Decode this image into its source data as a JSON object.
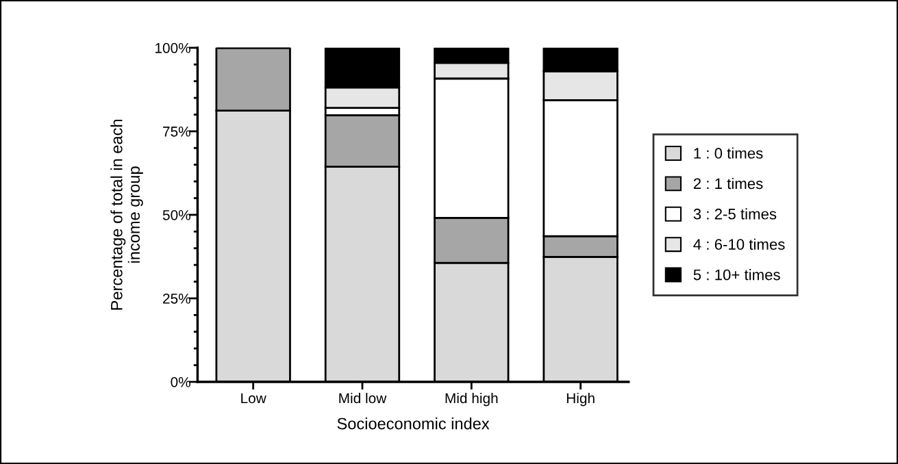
{
  "chart_data": {
    "type": "bar",
    "stacked": true,
    "xlabel": "Socioeconomic index",
    "ylabel": "Percentage of total in each\nincome group",
    "categories": [
      "Low",
      "Mid low",
      "Mid high",
      "High"
    ],
    "series": [
      {
        "name": "1 : 0 times",
        "color": "#d9d9d9",
        "values": [
          81.2,
          64.4,
          35.6,
          37.4
        ]
      },
      {
        "name": "2 : 1 times",
        "color": "#a6a6a6",
        "values": [
          18.8,
          15.4,
          13.5,
          6.2
        ]
      },
      {
        "name": "3 : 2-5 times",
        "color": "#ffffff",
        "values": [
          0,
          2.2,
          41.7,
          40.7
        ]
      },
      {
        "name": "4 : 6-10 times",
        "color": "#e6e6e6",
        "values": [
          0,
          6.1,
          4.7,
          8.7
        ]
      },
      {
        "name": "5 : 10+ times",
        "color": "#000000",
        "values": [
          0,
          11.9,
          4.5,
          7.0
        ]
      }
    ],
    "ylim": [
      0,
      100
    ],
    "yticks": [
      {
        "value": 0,
        "label": "0%"
      },
      {
        "value": 5,
        "label": null
      },
      {
        "value": 10,
        "label": null
      },
      {
        "value": 15,
        "label": null
      },
      {
        "value": 20,
        "label": null
      },
      {
        "value": 25,
        "label": "25%"
      },
      {
        "value": 30,
        "label": null
      },
      {
        "value": 35,
        "label": null
      },
      {
        "value": 40,
        "label": null
      },
      {
        "value": 45,
        "label": null
      },
      {
        "value": 50,
        "label": "50%"
      },
      {
        "value": 55,
        "label": null
      },
      {
        "value": 60,
        "label": null
      },
      {
        "value": 65,
        "label": null
      },
      {
        "value": 70,
        "label": null
      },
      {
        "value": 75,
        "label": "75%"
      },
      {
        "value": 80,
        "label": null
      },
      {
        "value": 85,
        "label": null
      },
      {
        "value": 90,
        "label": null
      },
      {
        "value": 95,
        "label": null
      },
      {
        "value": 100,
        "label": "100%"
      }
    ],
    "grid": false,
    "legend": "right"
  }
}
